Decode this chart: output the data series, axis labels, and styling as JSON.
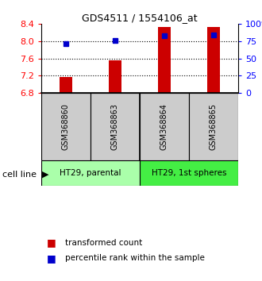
{
  "title": "GDS4511 / 1554106_at",
  "samples": [
    "GSM368860",
    "GSM368863",
    "GSM368864",
    "GSM368865"
  ],
  "bar_values": [
    7.16,
    7.55,
    8.33,
    8.33
  ],
  "bar_base": 6.8,
  "percentile_values": [
    71.5,
    75.5,
    83.0,
    83.5
  ],
  "bar_color": "#cc0000",
  "point_color": "#0000cc",
  "ylim_left": [
    6.8,
    8.4
  ],
  "ylim_right": [
    0,
    100
  ],
  "yticks_left": [
    6.8,
    7.2,
    7.6,
    8.0,
    8.4
  ],
  "yticks_right": [
    0,
    25,
    50,
    75,
    100
  ],
  "ytick_labels_right": [
    "0",
    "25",
    "50",
    "75",
    "100%"
  ],
  "hlines": [
    7.2,
    7.6,
    8.0
  ],
  "groups": [
    {
      "label": "HT29, parental",
      "samples": [
        0,
        1
      ],
      "color": "#aaffaa"
    },
    {
      "label": "HT29, 1st spheres",
      "samples": [
        2,
        3
      ],
      "color": "#44ee44"
    }
  ],
  "legend_items": [
    {
      "label": "transformed count",
      "color": "#cc0000"
    },
    {
      "label": "percentile rank within the sample",
      "color": "#0000cc"
    }
  ],
  "cell_line_label": "cell line",
  "bg_sample_box": "#cccccc",
  "bar_width": 0.25,
  "point_size": 5
}
